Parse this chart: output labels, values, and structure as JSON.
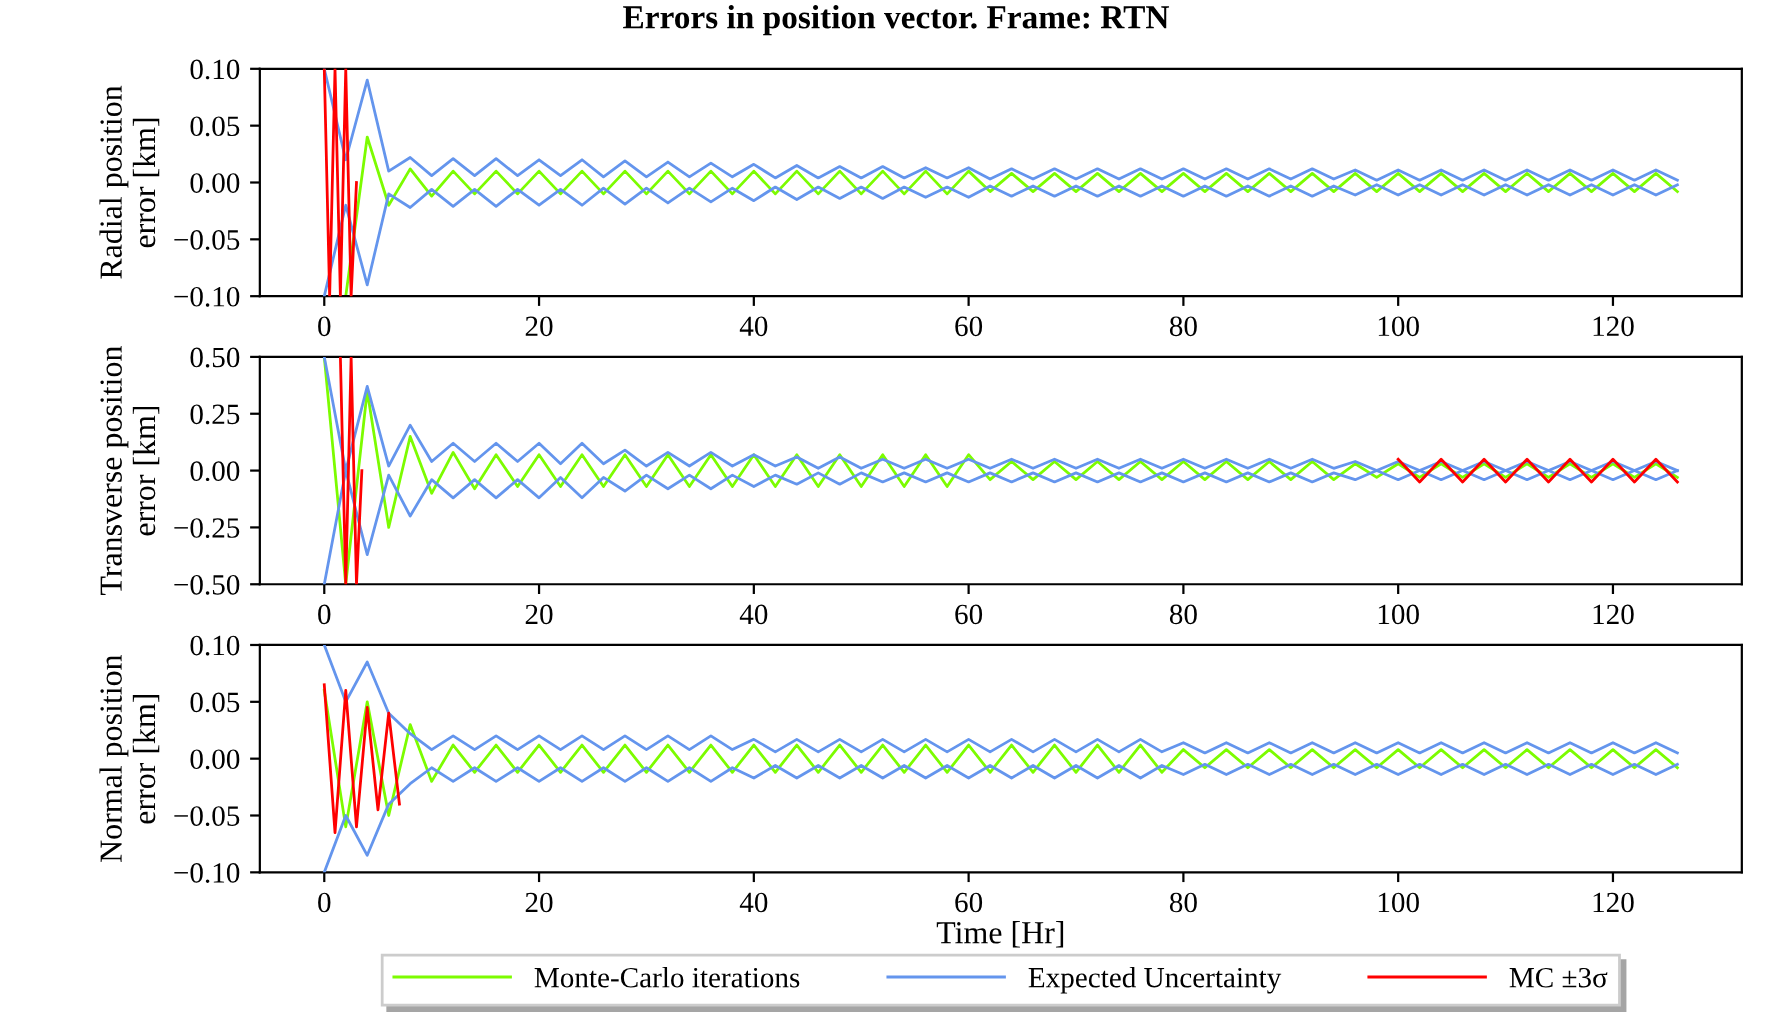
{
  "chart_data": [
    {
      "type": "line",
      "title": "Errors in position vector. Frame: RTN",
      "ylabel": "Radial position\nerror [km]",
      "xlim": [
        -6,
        132
      ],
      "xticks": [
        0,
        20,
        40,
        60,
        80,
        100,
        120
      ],
      "ylim": [
        -0.1,
        0.1
      ],
      "yticks": [
        {
          "value": -0.1,
          "label": "−0.10"
        },
        {
          "value": -0.05,
          "label": "−0.05"
        },
        {
          "value": 0,
          "label": "0.00"
        },
        {
          "value": 0.05,
          "label": "0.05"
        },
        {
          "value": 0.1,
          "label": "0.10"
        }
      ],
      "grid": false,
      "x": [
        0,
        2,
        4,
        6,
        8,
        10,
        12,
        14,
        16,
        18,
        20,
        22,
        24,
        26,
        28,
        30,
        32,
        34,
        36,
        38,
        40,
        42,
        44,
        46,
        48,
        50,
        52,
        54,
        56,
        58,
        60,
        62,
        64,
        66,
        68,
        70,
        72,
        74,
        76,
        78,
        80,
        82,
        84,
        86,
        88,
        90,
        92,
        94,
        96,
        98,
        100,
        102,
        104,
        106,
        108,
        110,
        112,
        114,
        116,
        118,
        120,
        122,
        124,
        126
      ],
      "series": [
        {
          "color": "#7cfc00",
          "values": [
            null,
            -0.1,
            0.04,
            -0.02,
            0.012,
            -0.012,
            0.01,
            -0.01,
            0.01,
            -0.01,
            0.01,
            -0.01,
            0.01,
            -0.01,
            0.01,
            -0.01,
            0.01,
            -0.01,
            0.01,
            -0.01,
            0.01,
            -0.01,
            0.01,
            -0.01,
            0.01,
            -0.01,
            0.01,
            -0.01,
            0.01,
            -0.01,
            0.01,
            -0.008,
            0.008,
            -0.008,
            0.008,
            -0.008,
            0.008,
            -0.008,
            0.008,
            -0.008,
            0.008,
            -0.008,
            0.008,
            -0.008,
            0.008,
            -0.008,
            0.008,
            -0.008,
            0.008,
            -0.008,
            0.008,
            -0.008,
            0.008,
            -0.008,
            0.008,
            -0.008,
            0.008,
            -0.008,
            0.008,
            -0.008,
            0.008,
            -0.008,
            0.008,
            -0.008
          ]
        },
        {
          "color": "#6495ed",
          "values": [
            0.1,
            0.02,
            0.09,
            0.01,
            0.022,
            0.006,
            0.021,
            0.006,
            0.021,
            0.006,
            0.02,
            0.006,
            0.02,
            0.005,
            0.019,
            0.005,
            0.018,
            0.005,
            0.017,
            0.005,
            0.016,
            0.004,
            0.015,
            0.004,
            0.014,
            0.004,
            0.014,
            0.004,
            0.013,
            0.004,
            0.013,
            0.003,
            0.012,
            0.003,
            0.012,
            0.003,
            0.012,
            0.003,
            0.012,
            0.003,
            0.012,
            0.003,
            0.012,
            0.003,
            0.012,
            0.003,
            0.012,
            0.003,
            0.011,
            0.002,
            0.011,
            0.002,
            0.011,
            0.002,
            0.011,
            0.002,
            0.011,
            0.002,
            0.011,
            0.002,
            0.011,
            0.002,
            0.011,
            0.002
          ]
        },
        {
          "color": "#6495ed",
          "values": [
            -0.1,
            -0.02,
            -0.09,
            -0.01,
            -0.022,
            -0.006,
            -0.021,
            -0.006,
            -0.021,
            -0.006,
            -0.02,
            -0.006,
            -0.02,
            -0.005,
            -0.019,
            -0.005,
            -0.018,
            -0.005,
            -0.017,
            -0.005,
            -0.016,
            -0.004,
            -0.015,
            -0.004,
            -0.014,
            -0.004,
            -0.014,
            -0.004,
            -0.013,
            -0.004,
            -0.013,
            -0.003,
            -0.012,
            -0.003,
            -0.012,
            -0.003,
            -0.012,
            -0.003,
            -0.012,
            -0.003,
            -0.012,
            -0.003,
            -0.012,
            -0.003,
            -0.012,
            -0.003,
            -0.012,
            -0.003,
            -0.011,
            -0.002,
            -0.011,
            -0.002,
            -0.011,
            -0.002,
            -0.011,
            -0.002,
            -0.011,
            -0.002,
            -0.011,
            -0.002,
            -0.011,
            -0.002,
            -0.011,
            -0.002
          ]
        },
        {
          "color": "#ff0000",
          "x": [
            0,
            0.5,
            1,
            1.5,
            2,
            2.5,
            3
          ],
          "values": [
            0.1,
            -0.1,
            0.1,
            -0.1,
            0.1,
            -0.1,
            0.0
          ]
        }
      ]
    },
    {
      "type": "line",
      "ylabel": "Transverse position\nerror [km]",
      "xlim": [
        -6,
        132
      ],
      "xticks": [
        0,
        20,
        40,
        60,
        80,
        100,
        120
      ],
      "ylim": [
        -0.5,
        0.5
      ],
      "yticks": [
        {
          "value": -0.5,
          "label": "−0.50"
        },
        {
          "value": -0.25,
          "label": "−0.25"
        },
        {
          "value": 0,
          "label": "0.00"
        },
        {
          "value": 0.25,
          "label": "0.25"
        },
        {
          "value": 0.5,
          "label": "0.50"
        }
      ],
      "grid": false,
      "x": [
        0,
        2,
        4,
        6,
        8,
        10,
        12,
        14,
        16,
        18,
        20,
        22,
        24,
        26,
        28,
        30,
        32,
        34,
        36,
        38,
        40,
        42,
        44,
        46,
        48,
        50,
        52,
        54,
        56,
        58,
        60,
        62,
        64,
        66,
        68,
        70,
        72,
        74,
        76,
        78,
        80,
        82,
        84,
        86,
        88,
        90,
        92,
        94,
        96,
        98,
        100,
        102,
        104,
        106,
        108,
        110,
        112,
        114,
        116,
        118,
        120,
        122,
        124,
        126
      ],
      "series": [
        {
          "color": "#7cfc00",
          "values": [
            0.5,
            -0.5,
            0.35,
            -0.25,
            0.15,
            -0.1,
            0.08,
            -0.08,
            0.07,
            -0.07,
            0.07,
            -0.07,
            0.07,
            -0.07,
            0.07,
            -0.07,
            0.07,
            -0.07,
            0.07,
            -0.07,
            0.07,
            -0.07,
            0.07,
            -0.07,
            0.07,
            -0.07,
            0.07,
            -0.07,
            0.07,
            -0.07,
            0.07,
            -0.04,
            0.04,
            -0.04,
            0.04,
            -0.04,
            0.04,
            -0.04,
            0.04,
            -0.04,
            0.04,
            -0.04,
            0.04,
            -0.04,
            0.04,
            -0.04,
            0.04,
            -0.04,
            0.03,
            -0.03,
            0.03,
            -0.03,
            0.03,
            -0.03,
            0.03,
            -0.03,
            0.03,
            -0.03,
            0.03,
            -0.03,
            0.03,
            -0.03,
            0.03,
            -0.03
          ]
        },
        {
          "color": "#6495ed",
          "values": [
            0.5,
            0.0,
            0.37,
            0.02,
            0.2,
            0.04,
            0.12,
            0.04,
            0.12,
            0.04,
            0.12,
            0.03,
            0.12,
            0.03,
            0.09,
            0.02,
            0.08,
            0.02,
            0.08,
            0.02,
            0.07,
            0.02,
            0.06,
            0.01,
            0.06,
            0.01,
            0.05,
            0.01,
            0.05,
            0.01,
            0.05,
            0.01,
            0.05,
            0.01,
            0.05,
            0.01,
            0.05,
            0.01,
            0.05,
            0.01,
            0.05,
            0.01,
            0.05,
            0.01,
            0.05,
            0.01,
            0.05,
            0.01,
            0.04,
            0.0,
            0.04,
            0.0,
            0.04,
            0.0,
            0.04,
            0.0,
            0.04,
            0.0,
            0.04,
            0.0,
            0.04,
            0.0,
            0.04,
            0.0
          ]
        },
        {
          "color": "#6495ed",
          "values": [
            -0.5,
            0.0,
            -0.37,
            -0.02,
            -0.2,
            -0.04,
            -0.12,
            -0.04,
            -0.12,
            -0.04,
            -0.12,
            -0.03,
            -0.12,
            -0.03,
            -0.09,
            -0.02,
            -0.08,
            -0.02,
            -0.08,
            -0.02,
            -0.07,
            -0.02,
            -0.06,
            -0.01,
            -0.06,
            -0.01,
            -0.05,
            -0.01,
            -0.05,
            -0.01,
            -0.05,
            -0.01,
            -0.05,
            -0.01,
            -0.05,
            -0.01,
            -0.05,
            -0.01,
            -0.05,
            -0.01,
            -0.05,
            -0.01,
            -0.05,
            -0.01,
            -0.05,
            -0.01,
            -0.05,
            -0.01,
            -0.04,
            0.0,
            -0.04,
            0.0,
            -0.04,
            0.0,
            -0.04,
            0.0,
            -0.04,
            0.0,
            -0.04,
            0.0,
            -0.04,
            0.0,
            -0.04,
            0.0
          ]
        },
        {
          "color": "#ff0000",
          "x": [
            1.5,
            2,
            2.5,
            3,
            3.5
          ],
          "values": [
            0.5,
            -0.5,
            0.5,
            -0.5,
            0.0
          ]
        },
        {
          "color": "#ff0000",
          "x": [
            100,
            102,
            104,
            106,
            108,
            110,
            112,
            114,
            116,
            118,
            120,
            122,
            124,
            126
          ],
          "values": [
            0.05,
            -0.05,
            0.05,
            -0.05,
            0.05,
            -0.05,
            0.05,
            -0.05,
            0.05,
            -0.05,
            0.05,
            -0.05,
            0.05,
            -0.05
          ]
        }
      ]
    },
    {
      "type": "line",
      "ylabel": "Normal position\nerror [km]",
      "xlabel": "Time [Hr]",
      "xlim": [
        -6,
        132
      ],
      "xticks": [
        0,
        20,
        40,
        60,
        80,
        100,
        120
      ],
      "ylim": [
        -0.1,
        0.1
      ],
      "yticks": [
        {
          "value": -0.1,
          "label": "−0.10"
        },
        {
          "value": -0.05,
          "label": "−0.05"
        },
        {
          "value": 0,
          "label": "0.00"
        },
        {
          "value": 0.05,
          "label": "0.05"
        },
        {
          "value": 0.1,
          "label": "0.10"
        }
      ],
      "grid": false,
      "legend": "bottom",
      "x": [
        0,
        2,
        4,
        6,
        8,
        10,
        12,
        14,
        16,
        18,
        20,
        22,
        24,
        26,
        28,
        30,
        32,
        34,
        36,
        38,
        40,
        42,
        44,
        46,
        48,
        50,
        52,
        54,
        56,
        58,
        60,
        62,
        64,
        66,
        68,
        70,
        72,
        74,
        76,
        78,
        80,
        82,
        84,
        86,
        88,
        90,
        92,
        94,
        96,
        98,
        100,
        102,
        104,
        106,
        108,
        110,
        112,
        114,
        116,
        118,
        120,
        122,
        124,
        126
      ],
      "series": [
        {
          "name": "Monte-Carlo iterations",
          "color": "#7cfc00",
          "values": [
            0.06,
            -0.06,
            0.05,
            -0.05,
            0.03,
            -0.02,
            0.012,
            -0.012,
            0.012,
            -0.012,
            0.012,
            -0.012,
            0.012,
            -0.012,
            0.012,
            -0.012,
            0.012,
            -0.012,
            0.012,
            -0.012,
            0.012,
            -0.012,
            0.012,
            -0.012,
            0.012,
            -0.012,
            0.012,
            -0.012,
            0.012,
            -0.012,
            0.012,
            -0.012,
            0.012,
            -0.012,
            0.012,
            -0.012,
            0.012,
            -0.012,
            0.012,
            -0.012,
            0.008,
            -0.008,
            0.008,
            -0.008,
            0.008,
            -0.008,
            0.008,
            -0.008,
            0.008,
            -0.008,
            0.008,
            -0.008,
            0.008,
            -0.008,
            0.008,
            -0.008,
            0.008,
            -0.008,
            0.008,
            -0.008,
            0.008,
            -0.008,
            0.008,
            -0.008
          ]
        },
        {
          "name": "Expected Uncertainty",
          "color": "#6495ed",
          "values": [
            0.1,
            0.05,
            0.085,
            0.04,
            0.022,
            0.008,
            0.02,
            0.008,
            0.02,
            0.008,
            0.02,
            0.008,
            0.02,
            0.008,
            0.02,
            0.008,
            0.02,
            0.008,
            0.02,
            0.008,
            0.017,
            0.006,
            0.017,
            0.006,
            0.017,
            0.006,
            0.017,
            0.006,
            0.017,
            0.006,
            0.017,
            0.006,
            0.017,
            0.006,
            0.017,
            0.006,
            0.017,
            0.006,
            0.017,
            0.006,
            0.014,
            0.005,
            0.014,
            0.005,
            0.014,
            0.005,
            0.014,
            0.005,
            0.014,
            0.005,
            0.014,
            0.005,
            0.014,
            0.005,
            0.014,
            0.005,
            0.014,
            0.005,
            0.014,
            0.005,
            0.014,
            0.005,
            0.014,
            0.005
          ]
        },
        {
          "color": "#6495ed",
          "values": [
            -0.1,
            -0.05,
            -0.085,
            -0.04,
            -0.022,
            -0.008,
            -0.02,
            -0.008,
            -0.02,
            -0.008,
            -0.02,
            -0.008,
            -0.02,
            -0.008,
            -0.02,
            -0.008,
            -0.02,
            -0.008,
            -0.02,
            -0.008,
            -0.017,
            -0.006,
            -0.017,
            -0.006,
            -0.017,
            -0.006,
            -0.017,
            -0.006,
            -0.017,
            -0.006,
            -0.017,
            -0.006,
            -0.017,
            -0.006,
            -0.017,
            -0.006,
            -0.017,
            -0.006,
            -0.017,
            -0.006,
            -0.014,
            -0.005,
            -0.014,
            -0.005,
            -0.014,
            -0.005,
            -0.014,
            -0.005,
            -0.014,
            -0.005,
            -0.014,
            -0.005,
            -0.014,
            -0.005,
            -0.014,
            -0.005,
            -0.014,
            -0.005,
            -0.014,
            -0.005,
            -0.014,
            -0.005,
            -0.014,
            -0.005
          ]
        },
        {
          "name": "MC ±3σ",
          "color": "#ff0000",
          "x": [
            0,
            1,
            2,
            3,
            4,
            5,
            6,
            7
          ],
          "values": [
            0.065,
            -0.065,
            0.06,
            -0.06,
            0.045,
            -0.045,
            0.04,
            -0.04
          ]
        }
      ]
    }
  ]
}
